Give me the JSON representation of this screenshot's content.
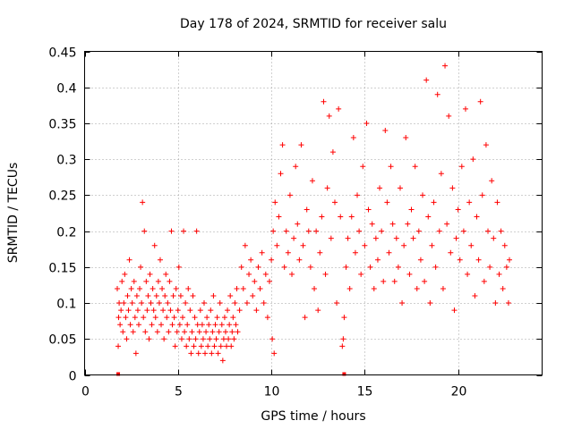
{
  "chart_data": {
    "type": "scatter",
    "title": "Day 178 of 2024, SRMTID for receiver salu",
    "xlabel": "GPS time / hours",
    "ylabel": "SRMTID / TECUs",
    "xlim": [
      0,
      24.5
    ],
    "ylim": [
      0,
      0.45
    ],
    "x_ticks": [
      0,
      5,
      10,
      15,
      20
    ],
    "x_tick_labels": [
      "0",
      "5",
      "10",
      "15",
      "20"
    ],
    "y_ticks": [
      0,
      0.05,
      0.1,
      0.15,
      0.2,
      0.25,
      0.3,
      0.35,
      0.4,
      0.45
    ],
    "y_tick_labels": [
      "0",
      "0.05",
      "0.1",
      "0.15",
      "0.2",
      "0.25",
      "0.3",
      "0.35",
      "0.4",
      "0.45"
    ],
    "grid": true,
    "marker": "plus",
    "color": "#ff0000",
    "baseline_markers_x": [
      1.8,
      13.9
    ],
    "series": [
      {
        "name": "SRMTID",
        "points": [
          [
            1.75,
            0.12
          ],
          [
            1.8,
            0.04
          ],
          [
            1.82,
            0.08
          ],
          [
            1.85,
            0.1
          ],
          [
            1.9,
            0.07
          ],
          [
            1.95,
            0.09
          ],
          [
            2.0,
            0.13
          ],
          [
            2.05,
            0.06
          ],
          [
            2.1,
            0.1
          ],
          [
            2.15,
            0.14
          ],
          [
            2.2,
            0.08
          ],
          [
            2.25,
            0.05
          ],
          [
            2.3,
            0.11
          ],
          [
            2.35,
            0.09
          ],
          [
            2.4,
            0.16
          ],
          [
            2.45,
            0.07
          ],
          [
            2.5,
            0.12
          ],
          [
            2.55,
            0.1
          ],
          [
            2.6,
            0.06
          ],
          [
            2.65,
            0.13
          ],
          [
            2.7,
            0.08
          ],
          [
            2.75,
            0.03
          ],
          [
            2.8,
            0.11
          ],
          [
            2.85,
            0.09
          ],
          [
            2.9,
            0.07
          ],
          [
            2.95,
            0.12
          ],
          [
            3.0,
            0.15
          ],
          [
            3.05,
            0.1
          ],
          [
            3.1,
            0.24
          ],
          [
            3.15,
            0.08
          ],
          [
            3.2,
            0.2
          ],
          [
            3.25,
            0.06
          ],
          [
            3.3,
            0.13
          ],
          [
            3.35,
            0.09
          ],
          [
            3.4,
            0.11
          ],
          [
            3.45,
            0.05
          ],
          [
            3.5,
            0.14
          ],
          [
            3.55,
            0.1
          ],
          [
            3.6,
            0.07
          ],
          [
            3.65,
            0.12
          ],
          [
            3.7,
            0.09
          ],
          [
            3.75,
            0.18
          ],
          [
            3.8,
            0.08
          ],
          [
            3.85,
            0.11
          ],
          [
            3.9,
            0.06
          ],
          [
            3.95,
            0.13
          ],
          [
            4.0,
            0.1
          ],
          [
            4.05,
            0.16
          ],
          [
            4.1,
            0.07
          ],
          [
            4.15,
            0.12
          ],
          [
            4.2,
            0.09
          ],
          [
            4.25,
            0.05
          ],
          [
            4.3,
            0.11
          ],
          [
            4.35,
            0.14
          ],
          [
            4.4,
            0.08
          ],
          [
            4.45,
            0.1
          ],
          [
            4.5,
            0.06
          ],
          [
            4.55,
            0.13
          ],
          [
            4.6,
            0.09
          ],
          [
            4.65,
            0.2
          ],
          [
            4.7,
            0.07
          ],
          [
            4.75,
            0.11
          ],
          [
            4.8,
            0.08
          ],
          [
            4.85,
            0.04
          ],
          [
            4.9,
            0.12
          ],
          [
            4.95,
            0.06
          ],
          [
            5.0,
            0.09
          ],
          [
            5.05,
            0.15
          ],
          [
            5.1,
            0.07
          ],
          [
            5.15,
            0.11
          ],
          [
            5.2,
            0.05
          ],
          [
            5.25,
            0.08
          ],
          [
            5.3,
            0.2
          ],
          [
            5.35,
            0.06
          ],
          [
            5.4,
            0.1
          ],
          [
            5.45,
            0.04
          ],
          [
            5.5,
            0.07
          ],
          [
            5.55,
            0.12
          ],
          [
            5.6,
            0.05
          ],
          [
            5.65,
            0.09
          ],
          [
            5.7,
            0.03
          ],
          [
            5.75,
            0.06
          ],
          [
            5.8,
            0.11
          ],
          [
            5.85,
            0.04
          ],
          [
            5.9,
            0.08
          ],
          [
            5.95,
            0.05
          ],
          [
            6.0,
            0.2
          ],
          [
            6.05,
            0.07
          ],
          [
            6.1,
            0.03
          ],
          [
            6.15,
            0.06
          ],
          [
            6.2,
            0.09
          ],
          [
            6.25,
            0.04
          ],
          [
            6.3,
            0.07
          ],
          [
            6.35,
            0.05
          ],
          [
            6.4,
            0.1
          ],
          [
            6.45,
            0.03
          ],
          [
            6.5,
            0.06
          ],
          [
            6.55,
            0.08
          ],
          [
            6.6,
            0.04
          ],
          [
            6.65,
            0.07
          ],
          [
            6.7,
            0.05
          ],
          [
            6.75,
            0.09
          ],
          [
            6.8,
            0.03
          ],
          [
            6.85,
            0.06
          ],
          [
            6.9,
            0.11
          ],
          [
            6.95,
            0.04
          ],
          [
            7.0,
            0.07
          ],
          [
            7.05,
            0.05
          ],
          [
            7.1,
            0.08
          ],
          [
            7.15,
            0.03
          ],
          [
            7.2,
            0.06
          ],
          [
            7.25,
            0.1
          ],
          [
            7.3,
            0.04
          ],
          [
            7.35,
            0.07
          ],
          [
            7.4,
            0.02
          ],
          [
            7.45,
            0.05
          ],
          [
            7.5,
            0.08
          ],
          [
            7.55,
            0.06
          ],
          [
            7.6,
            0.04
          ],
          [
            7.65,
            0.09
          ],
          [
            7.7,
            0.05
          ],
          [
            7.75,
            0.07
          ],
          [
            7.8,
            0.11
          ],
          [
            7.85,
            0.04
          ],
          [
            7.9,
            0.06
          ],
          [
            7.95,
            0.08
          ],
          [
            8.0,
            0.05
          ],
          [
            8.05,
            0.1
          ],
          [
            8.1,
            0.07
          ],
          [
            8.15,
            0.12
          ],
          [
            8.2,
            0.06
          ],
          [
            8.3,
            0.09
          ],
          [
            8.4,
            0.15
          ],
          [
            8.5,
            0.12
          ],
          [
            8.6,
            0.18
          ],
          [
            8.7,
            0.1
          ],
          [
            8.8,
            0.14
          ],
          [
            8.9,
            0.16
          ],
          [
            9.0,
            0.11
          ],
          [
            9.1,
            0.13
          ],
          [
            9.2,
            0.09
          ],
          [
            9.3,
            0.15
          ],
          [
            9.4,
            0.12
          ],
          [
            9.5,
            0.17
          ],
          [
            9.6,
            0.1
          ],
          [
            9.7,
            0.14
          ],
          [
            9.8,
            0.08
          ],
          [
            9.9,
            0.13
          ],
          [
            10.0,
            0.16
          ],
          [
            10.05,
            0.05
          ],
          [
            10.1,
            0.2
          ],
          [
            10.15,
            0.03
          ],
          [
            10.2,
            0.24
          ],
          [
            10.3,
            0.18
          ],
          [
            10.4,
            0.22
          ],
          [
            10.5,
            0.28
          ],
          [
            10.6,
            0.32
          ],
          [
            10.7,
            0.15
          ],
          [
            10.8,
            0.2
          ],
          [
            10.9,
            0.17
          ],
          [
            11.0,
            0.25
          ],
          [
            11.1,
            0.14
          ],
          [
            11.2,
            0.19
          ],
          [
            11.3,
            0.29
          ],
          [
            11.4,
            0.21
          ],
          [
            11.5,
            0.16
          ],
          [
            11.6,
            0.32
          ],
          [
            11.7,
            0.18
          ],
          [
            11.8,
            0.08
          ],
          [
            11.9,
            0.23
          ],
          [
            12.0,
            0.2
          ],
          [
            12.1,
            0.15
          ],
          [
            12.2,
            0.27
          ],
          [
            12.3,
            0.12
          ],
          [
            12.4,
            0.2
          ],
          [
            12.5,
            0.09
          ],
          [
            12.6,
            0.17
          ],
          [
            12.7,
            0.22
          ],
          [
            12.8,
            0.38
          ],
          [
            12.9,
            0.14
          ],
          [
            13.0,
            0.26
          ],
          [
            13.1,
            0.36
          ],
          [
            13.2,
            0.19
          ],
          [
            13.3,
            0.31
          ],
          [
            13.4,
            0.24
          ],
          [
            13.5,
            0.1
          ],
          [
            13.6,
            0.37
          ],
          [
            13.7,
            0.22
          ],
          [
            13.8,
            0.04
          ],
          [
            13.85,
            0.05
          ],
          [
            13.9,
            0.08
          ],
          [
            14.0,
            0.15
          ],
          [
            14.1,
            0.19
          ],
          [
            14.2,
            0.12
          ],
          [
            14.3,
            0.22
          ],
          [
            14.4,
            0.33
          ],
          [
            14.5,
            0.17
          ],
          [
            14.6,
            0.25
          ],
          [
            14.7,
            0.2
          ],
          [
            14.8,
            0.14
          ],
          [
            14.9,
            0.29
          ],
          [
            15.0,
            0.18
          ],
          [
            15.1,
            0.35
          ],
          [
            15.2,
            0.23
          ],
          [
            15.3,
            0.15
          ],
          [
            15.4,
            0.21
          ],
          [
            15.5,
            0.12
          ],
          [
            15.6,
            0.19
          ],
          [
            15.7,
            0.16
          ],
          [
            15.8,
            0.26
          ],
          [
            15.9,
            0.2
          ],
          [
            16.0,
            0.13
          ],
          [
            16.1,
            0.34
          ],
          [
            16.2,
            0.24
          ],
          [
            16.3,
            0.17
          ],
          [
            16.4,
            0.29
          ],
          [
            16.5,
            0.21
          ],
          [
            16.6,
            0.13
          ],
          [
            16.7,
            0.19
          ],
          [
            16.8,
            0.15
          ],
          [
            16.9,
            0.26
          ],
          [
            17.0,
            0.1
          ],
          [
            17.1,
            0.18
          ],
          [
            17.2,
            0.33
          ],
          [
            17.3,
            0.21
          ],
          [
            17.4,
            0.14
          ],
          [
            17.5,
            0.23
          ],
          [
            17.6,
            0.19
          ],
          [
            17.7,
            0.29
          ],
          [
            17.8,
            0.12
          ],
          [
            17.9,
            0.2
          ],
          [
            18.0,
            0.16
          ],
          [
            18.1,
            0.25
          ],
          [
            18.2,
            0.13
          ],
          [
            18.3,
            0.41
          ],
          [
            18.4,
            0.22
          ],
          [
            18.5,
            0.1
          ],
          [
            18.6,
            0.18
          ],
          [
            18.7,
            0.24
          ],
          [
            18.8,
            0.15
          ],
          [
            18.9,
            0.39
          ],
          [
            19.0,
            0.2
          ],
          [
            19.1,
            0.28
          ],
          [
            19.2,
            0.12
          ],
          [
            19.3,
            0.43
          ],
          [
            19.4,
            0.21
          ],
          [
            19.5,
            0.36
          ],
          [
            19.6,
            0.17
          ],
          [
            19.7,
            0.26
          ],
          [
            19.8,
            0.09
          ],
          [
            19.9,
            0.19
          ],
          [
            20.0,
            0.23
          ],
          [
            20.1,
            0.16
          ],
          [
            20.2,
            0.29
          ],
          [
            20.3,
            0.2
          ],
          [
            20.4,
            0.37
          ],
          [
            20.5,
            0.14
          ],
          [
            20.6,
            0.24
          ],
          [
            20.7,
            0.18
          ],
          [
            20.8,
            0.3
          ],
          [
            20.9,
            0.11
          ],
          [
            21.0,
            0.22
          ],
          [
            21.1,
            0.16
          ],
          [
            21.2,
            0.38
          ],
          [
            21.3,
            0.25
          ],
          [
            21.4,
            0.13
          ],
          [
            21.5,
            0.32
          ],
          [
            21.6,
            0.2
          ],
          [
            21.7,
            0.15
          ],
          [
            21.8,
            0.27
          ],
          [
            21.9,
            0.19
          ],
          [
            22.0,
            0.1
          ],
          [
            22.1,
            0.24
          ],
          [
            22.2,
            0.14
          ],
          [
            22.3,
            0.2
          ],
          [
            22.4,
            0.12
          ],
          [
            22.5,
            0.18
          ],
          [
            22.6,
            0.15
          ],
          [
            22.7,
            0.1
          ],
          [
            22.75,
            0.16
          ]
        ]
      }
    ]
  }
}
